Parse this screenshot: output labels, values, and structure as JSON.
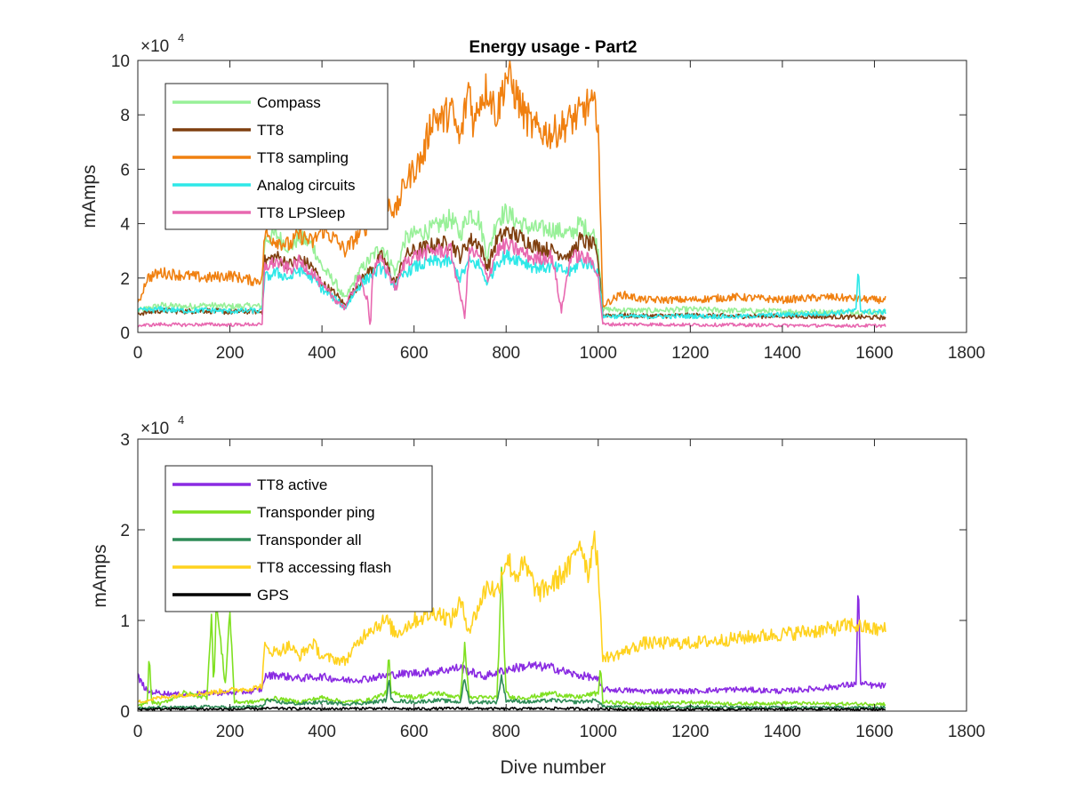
{
  "chart_data": [
    {
      "type": "line",
      "title": "Energy usage - Part2",
      "xlabel": "",
      "ylabel": "mAmps",
      "xlim": [
        0,
        1800
      ],
      "ylim": [
        0,
        100000
      ],
      "y_multiplier": "×10",
      "y_multiplier_exp": "4",
      "xticks": [
        "0",
        "200",
        "400",
        "600",
        "800",
        "1000",
        "1200",
        "1400",
        "1600",
        "1800"
      ],
      "yticks": [
        "0",
        "2",
        "4",
        "6",
        "8",
        "10"
      ],
      "grid": false,
      "legend_position": "top-left",
      "series": [
        {
          "name": "Compass",
          "color": "#98f098",
          "x": [
            0,
            50,
            100,
            150,
            200,
            250,
            270,
            275,
            300,
            330,
            350,
            380,
            400,
            430,
            450,
            480,
            500,
            530,
            560,
            580,
            600,
            640,
            680,
            700,
            720,
            740,
            760,
            780,
            800,
            830,
            860,
            900,
            940,
            960,
            990,
            1000,
            1005,
            1010,
            1100,
            1200,
            1300,
            1400,
            1500,
            1600,
            1625
          ],
          "y": [
            8000,
            10000,
            9500,
            10000,
            9500,
            9800,
            9500,
            34000,
            36000,
            31000,
            35000,
            32000,
            24000,
            18000,
            12000,
            22000,
            26000,
            32000,
            22000,
            34000,
            36000,
            38000,
            42000,
            36000,
            44000,
            42000,
            28000,
            42000,
            44000,
            40000,
            38000,
            38000,
            36000,
            40000,
            36000,
            30000,
            20000,
            8500,
            8000,
            8500,
            8000,
            7800,
            7500,
            7500,
            7500
          ]
        },
        {
          "name": "TT8",
          "color": "#7f3f0f",
          "x": [
            0,
            50,
            100,
            150,
            200,
            250,
            270,
            275,
            300,
            330,
            350,
            380,
            400,
            430,
            450,
            480,
            500,
            530,
            560,
            580,
            600,
            640,
            680,
            700,
            720,
            740,
            760,
            780,
            800,
            830,
            860,
            900,
            940,
            960,
            990,
            1000,
            1005,
            1010,
            1100,
            1200,
            1300,
            1400,
            1500,
            1600,
            1625
          ],
          "y": [
            7000,
            8000,
            7800,
            8000,
            7500,
            7800,
            7500,
            26000,
            28000,
            25000,
            27000,
            24000,
            18000,
            14000,
            10000,
            18000,
            22000,
            28000,
            18000,
            28000,
            30000,
            32000,
            33000,
            28000,
            34000,
            33000,
            24000,
            34000,
            37000,
            35000,
            32000,
            30000,
            28000,
            34000,
            32000,
            26000,
            16000,
            6500,
            6000,
            6300,
            6000,
            6000,
            5800,
            5500,
            5500
          ]
        },
        {
          "name": "TT8 sampling",
          "color": "#f08010",
          "x": [
            0,
            20,
            50,
            100,
            150,
            200,
            250,
            270,
            275,
            300,
            330,
            350,
            380,
            400,
            430,
            450,
            480,
            500,
            530,
            560,
            580,
            600,
            620,
            640,
            660,
            680,
            700,
            720,
            730,
            740,
            760,
            780,
            800,
            820,
            840,
            860,
            880,
            900,
            940,
            960,
            980,
            1000,
            1005,
            1010,
            1050,
            1100,
            1200,
            1300,
            1400,
            1500,
            1600,
            1625
          ],
          "y": [
            10000,
            20000,
            22000,
            21000,
            20000,
            21000,
            19000,
            19500,
            36000,
            34000,
            32000,
            36000,
            33000,
            38000,
            34000,
            30000,
            36000,
            40000,
            52000,
            44000,
            55000,
            60000,
            65000,
            80000,
            78000,
            82000,
            70000,
            92000,
            75000,
            85000,
            90000,
            80000,
            95000,
            88000,
            80000,
            75000,
            74000,
            73000,
            78000,
            80000,
            84000,
            80000,
            40000,
            10000,
            14000,
            12000,
            12000,
            13000,
            12000,
            13000,
            12000,
            12000
          ]
        },
        {
          "name": "Analog circuits",
          "color": "#2ee8e8",
          "x": [
            0,
            50,
            100,
            150,
            200,
            250,
            270,
            275,
            300,
            330,
            350,
            380,
            400,
            430,
            450,
            480,
            500,
            530,
            560,
            580,
            600,
            640,
            680,
            700,
            720,
            740,
            760,
            780,
            800,
            830,
            860,
            900,
            940,
            960,
            990,
            1000,
            1005,
            1010,
            1100,
            1200,
            1300,
            1400,
            1500,
            1560,
            1565,
            1570,
            1600,
            1625
          ],
          "y": [
            8000,
            8500,
            8000,
            8200,
            7800,
            8000,
            7800,
            20000,
            22000,
            20000,
            23000,
            20000,
            16000,
            12000,
            9000,
            17000,
            20000,
            24000,
            17000,
            22000,
            24000,
            26000,
            26000,
            20000,
            26000,
            25000,
            18000,
            26000,
            28000,
            27000,
            24000,
            24000,
            22000,
            26000,
            25000,
            22000,
            14000,
            6000,
            5800,
            6000,
            5800,
            6500,
            7000,
            8000,
            23000,
            8000,
            7500,
            7500
          ]
        },
        {
          "name": "TT8 LPSleep",
          "color": "#e868b0",
          "x": [
            0,
            50,
            100,
            150,
            200,
            250,
            270,
            275,
            300,
            330,
            350,
            380,
            400,
            430,
            450,
            480,
            500,
            505,
            510,
            530,
            560,
            580,
            600,
            640,
            680,
            700,
            710,
            720,
            740,
            760,
            780,
            800,
            830,
            860,
            900,
            920,
            940,
            960,
            990,
            1000,
            1005,
            1010,
            1100,
            1200,
            1300,
            1400,
            1500,
            1600,
            1625
          ],
          "y": [
            2500,
            3000,
            2800,
            3000,
            2800,
            3000,
            2800,
            24000,
            26000,
            23000,
            26000,
            22000,
            17000,
            12000,
            9000,
            20000,
            12000,
            500,
            22000,
            27000,
            16000,
            26000,
            28000,
            30000,
            30000,
            14000,
            6000,
            30000,
            28000,
            20000,
            30000,
            32000,
            30000,
            27000,
            28000,
            8000,
            28000,
            28000,
            26000,
            20000,
            12000,
            3000,
            3000,
            2800,
            2800,
            2600,
            2500,
            2500,
            2500
          ]
        }
      ]
    },
    {
      "type": "line",
      "title": "",
      "xlabel": "Dive number",
      "ylabel": "mAmps",
      "xlim": [
        0,
        1800
      ],
      "ylim": [
        0,
        30000
      ],
      "y_multiplier": "×10",
      "y_multiplier_exp": "4",
      "xticks": [
        "0",
        "200",
        "400",
        "600",
        "800",
        "1000",
        "1200",
        "1400",
        "1600",
        "1800"
      ],
      "yticks": [
        "0",
        "1",
        "2",
        "3"
      ],
      "grid": false,
      "legend_position": "top-left",
      "series": [
        {
          "name": "TT8 active",
          "color": "#8a2be2",
          "x": [
            0,
            20,
            50,
            100,
            150,
            200,
            250,
            270,
            275,
            300,
            350,
            400,
            450,
            500,
            550,
            600,
            650,
            700,
            750,
            800,
            850,
            900,
            950,
            980,
            1000,
            1005,
            1010,
            1100,
            1200,
            1300,
            1400,
            1500,
            1560,
            1565,
            1570,
            1600,
            1625
          ],
          "y": [
            3800,
            2200,
            2000,
            1800,
            2000,
            2000,
            2200,
            2400,
            3800,
            4000,
            3600,
            3800,
            3400,
            3600,
            4000,
            4200,
            4400,
            4800,
            3800,
            4600,
            5000,
            4800,
            4000,
            3800,
            3400,
            2800,
            2400,
            2200,
            2200,
            2400,
            2200,
            2600,
            3000,
            14000,
            3000,
            2800,
            2800
          ]
        },
        {
          "name": "Transponder ping",
          "color": "#7fe020",
          "x": [
            0,
            20,
            25,
            30,
            50,
            100,
            150,
            160,
            165,
            170,
            190,
            200,
            210,
            250,
            270,
            300,
            350,
            400,
            450,
            500,
            540,
            545,
            550,
            600,
            650,
            700,
            710,
            720,
            780,
            790,
            800,
            810,
            850,
            900,
            950,
            1000,
            1005,
            1010,
            1100,
            1200,
            1300,
            1400,
            1500,
            1600,
            1625
          ],
          "y": [
            500,
            1000,
            6000,
            1000,
            800,
            2000,
            1500,
            11000,
            2000,
            12000,
            3000,
            11000,
            1000,
            1000,
            1200,
            1400,
            1000,
            1500,
            1000,
            1200,
            2000,
            6000,
            2000,
            1500,
            2000,
            1500,
            7000,
            1500,
            1500,
            15000,
            2000,
            1500,
            1500,
            2000,
            1500,
            2000,
            5000,
            1000,
            800,
            1000,
            800,
            900,
            800,
            800,
            800
          ]
        },
        {
          "name": "Transponder all",
          "color": "#2e8b57",
          "x": [
            0,
            50,
            100,
            150,
            200,
            250,
            270,
            280,
            300,
            350,
            400,
            450,
            500,
            540,
            545,
            550,
            600,
            650,
            700,
            710,
            720,
            780,
            790,
            800,
            850,
            900,
            950,
            1000,
            1010,
            1100,
            1200,
            1300,
            1400,
            1500,
            1600,
            1625
          ],
          "y": [
            300,
            400,
            400,
            500,
            400,
            500,
            500,
            1200,
            1000,
            800,
            1000,
            800,
            900,
            1200,
            3800,
            1200,
            1000,
            1200,
            1000,
            3500,
            1000,
            1000,
            3800,
            1200,
            1000,
            1200,
            1000,
            1200,
            500,
            400,
            500,
            400,
            400,
            400,
            400,
            400
          ]
        },
        {
          "name": "TT8 accessing flash",
          "color": "#ffd21e",
          "x": [
            0,
            50,
            100,
            150,
            200,
            250,
            270,
            275,
            300,
            330,
            350,
            380,
            400,
            450,
            500,
            540,
            560,
            600,
            650,
            680,
            700,
            720,
            760,
            780,
            800,
            820,
            840,
            870,
            900,
            940,
            960,
            980,
            990,
            1000,
            1005,
            1010,
            1030,
            1100,
            1200,
            1300,
            1400,
            1500,
            1550,
            1600,
            1625
          ],
          "y": [
            1000,
            1500,
            1800,
            2000,
            2300,
            2500,
            2800,
            7000,
            6500,
            7200,
            6000,
            7500,
            6000,
            5500,
            9000,
            10000,
            8500,
            10000,
            11000,
            10000,
            12000,
            9000,
            14000,
            13000,
            17000,
            15000,
            16000,
            13000,
            14000,
            16000,
            19000,
            15000,
            20000,
            16000,
            10000,
            6000,
            6000,
            7500,
            7500,
            8000,
            8500,
            9000,
            9500,
            9000,
            9000
          ]
        },
        {
          "name": "GPS",
          "color": "#000000",
          "x": [
            0,
            100,
            200,
            300,
            400,
            500,
            600,
            700,
            800,
            900,
            1000,
            1100,
            1200,
            1300,
            1400,
            1500,
            1600,
            1625
          ],
          "y": [
            200,
            250,
            200,
            300,
            250,
            300,
            250,
            300,
            250,
            300,
            250,
            200,
            200,
            200,
            200,
            200,
            200,
            200
          ]
        }
      ]
    }
  ]
}
